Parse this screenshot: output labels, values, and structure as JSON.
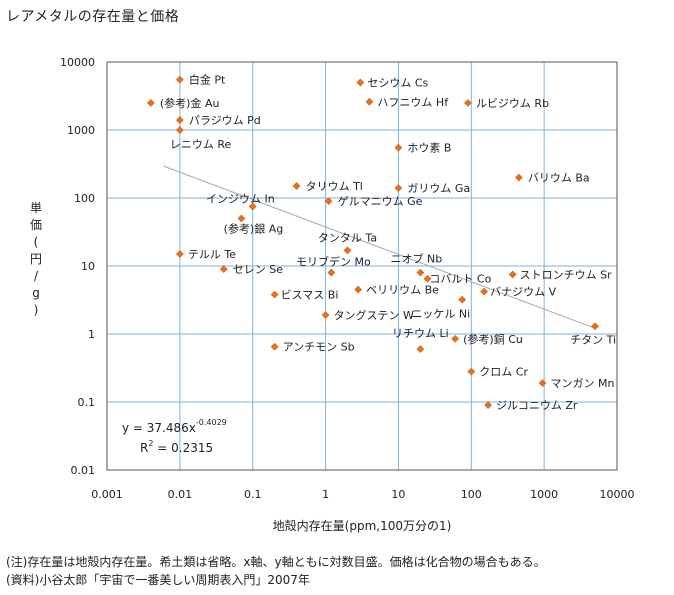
{
  "title": "レアメタルの存在量と価格",
  "notes": [
    "(注)存在量は地殻内存在量。希土類は省略。x軸、y軸ともに対数目盛。価格は化合物の場合もある。",
    "(資料)小谷太郎「宇宙で一番美しい周期表入門」2007年"
  ],
  "chart_data": {
    "type": "scatter",
    "title": "レアメタルの存在量と価格",
    "xlabel": "地殻内存在量(ppm,100万分の1)",
    "ylabel": "単価(円/g)",
    "xscale": "log",
    "yscale": "log",
    "xlim": [
      0.001,
      10000
    ],
    "ylim": [
      0.01,
      10000
    ],
    "x_ticks": [
      "0.001",
      "0.01",
      "0.1",
      "1",
      "10",
      "100",
      "1000",
      "10000"
    ],
    "y_ticks": [
      "10000",
      "1000",
      "100",
      "10",
      "1",
      "0.1",
      "0.01"
    ],
    "grid": true,
    "marker_color": "#e8701a",
    "grid_color": "#7fb2e0",
    "trend_color": "#aaaaaa",
    "points": [
      {
        "label": "白金 Pt",
        "x": 0.01,
        "y": 5500
      },
      {
        "label": "(参考)金 Au",
        "x": 0.004,
        "y": 2500
      },
      {
        "label": "パラジウム Pd",
        "x": 0.01,
        "y": 1400
      },
      {
        "label": "レニウム Re",
        "x": 0.01,
        "y": 1000
      },
      {
        "label": "セシウム Cs",
        "x": 3,
        "y": 5000
      },
      {
        "label": "ハフニウム Hf",
        "x": 4,
        "y": 2600
      },
      {
        "label": "ルビジウム Rb",
        "x": 90,
        "y": 2500
      },
      {
        "label": "ホウ素 B",
        "x": 10,
        "y": 550
      },
      {
        "label": "バリウム Ba",
        "x": 450,
        "y": 200
      },
      {
        "label": "タリウム Tl",
        "x": 0.4,
        "y": 150
      },
      {
        "label": "ガリウム Ga",
        "x": 10,
        "y": 140
      },
      {
        "label": "インジウム In",
        "x": 0.1,
        "y": 75
      },
      {
        "label": "ゲルマニウム Ge",
        "x": 1.1,
        "y": 90
      },
      {
        "label": "(参考)銀 Ag",
        "x": 0.07,
        "y": 50
      },
      {
        "label": "タンタル Ta",
        "x": 2,
        "y": 17
      },
      {
        "label": "ニオブ Nb",
        "x": 20,
        "y": 8
      },
      {
        "label": "テルル Te",
        "x": 0.01,
        "y": 15
      },
      {
        "label": "セレン Se",
        "x": 0.04,
        "y": 9
      },
      {
        "label": "モリブデン Mo",
        "x": 1.2,
        "y": 8
      },
      {
        "label": "コバルト Co",
        "x": 25,
        "y": 6.5
      },
      {
        "label": "ストロンチウム Sr",
        "x": 370,
        "y": 7.5
      },
      {
        "label": "ビスマス Bi",
        "x": 0.2,
        "y": 3.8
      },
      {
        "label": "ベリリウム Be",
        "x": 2.8,
        "y": 4.5
      },
      {
        "label": "バナジウム V",
        "x": 150,
        "y": 4.2
      },
      {
        "label": "ニッケル Ni",
        "x": 75,
        "y": 3.2
      },
      {
        "label": "タングステン W",
        "x": 1,
        "y": 1.9
      },
      {
        "label": "チタン Ti",
        "x": 5000,
        "y": 1.3
      },
      {
        "label": "アンチモン Sb",
        "x": 0.2,
        "y": 0.65
      },
      {
        "label": "(参考)銅 Cu",
        "x": 60,
        "y": 0.85
      },
      {
        "label": "リチウム Li",
        "x": 20,
        "y": 0.6
      },
      {
        "label": "クロム Cr",
        "x": 100,
        "y": 0.28
      },
      {
        "label": "マンガン Mn",
        "x": 950,
        "y": 0.19
      },
      {
        "label": "ジルコニウム Zr",
        "x": 170,
        "y": 0.09
      }
    ],
    "trendline": {
      "coef": "37.486",
      "exp": "-0.4029",
      "r2": "0.2315",
      "x_range": [
        0.006,
        5000
      ]
    },
    "equation_text": {
      "y_prefix": "y = 37.486x",
      "y_exp": "-0.4029",
      "r_prefix": "R",
      "r_exp": "2",
      "r_value": " = 0.2315"
    }
  }
}
